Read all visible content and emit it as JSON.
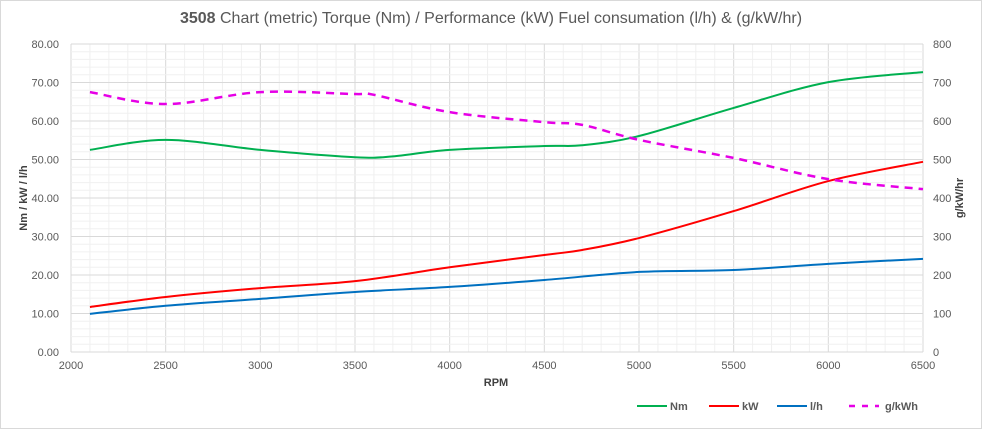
{
  "chart_data": {
    "type": "line",
    "title_bold": "3508",
    "title_rest": " Chart (metric)  Torque (Nm) / Performance (kW) Fuel consumation (l/h) & (g/kW/hr)",
    "xlabel": "RPM",
    "ylabel": "Nm / kW / l/h",
    "y2label": "g/kW/hr",
    "xlim": [
      2000,
      6500
    ],
    "ylim": [
      0,
      80
    ],
    "y2lim": [
      0,
      800
    ],
    "xticks": [
      "2000",
      "2500",
      "3000",
      "3500",
      "4000",
      "4500",
      "5000",
      "5500",
      "6000",
      "6500"
    ],
    "yticks": [
      "0.00",
      "10.00",
      "20.00",
      "30.00",
      "40.00",
      "50.00",
      "60.00",
      "70.00",
      "80.00"
    ],
    "y2ticks": [
      "0",
      "100",
      "200",
      "300",
      "400",
      "500",
      "600",
      "700",
      "800"
    ],
    "grid": true,
    "legend_position": "bottom-right",
    "series": [
      {
        "name": "Nm",
        "axis": "left",
        "color": "#00b050",
        "dashed": false,
        "x": [
          2100,
          2500,
          3000,
          3500,
          3700,
          4000,
          4500,
          4700,
          5000,
          5500,
          6000,
          6500
        ],
        "y": [
          52.5,
          55.1,
          52.5,
          50.6,
          50.8,
          52.5,
          53.5,
          53.7,
          56.1,
          63.4,
          70.1,
          72.7
        ]
      },
      {
        "name": "kW",
        "axis": "left",
        "color": "#ff0000",
        "dashed": false,
        "x": [
          2100,
          2500,
          3000,
          3500,
          4000,
          4500,
          4700,
          5000,
          5500,
          6000,
          6500
        ],
        "y": [
          11.7,
          14.3,
          16.6,
          18.4,
          22.0,
          25.2,
          26.5,
          29.6,
          36.6,
          44.4,
          49.4
        ]
      },
      {
        "name": "l/h",
        "axis": "left",
        "color": "#0070c0",
        "dashed": false,
        "x": [
          2100,
          2500,
          3000,
          3500,
          4000,
          4500,
          5000,
          5500,
          6000,
          6500
        ],
        "y": [
          9.9,
          12.0,
          13.8,
          15.6,
          16.9,
          18.7,
          20.8,
          21.3,
          22.9,
          24.2
        ]
      },
      {
        "name": "g/kWh",
        "axis": "right",
        "color": "#e600e6",
        "dashed": true,
        "x": [
          2100,
          2500,
          3000,
          3500,
          3600,
          4000,
          4500,
          4700,
          5000,
          5500,
          6000,
          6500
        ],
        "y": [
          675,
          644,
          675,
          670,
          668,
          623,
          597,
          590,
          551,
          504,
          449,
          423
        ]
      }
    ]
  }
}
